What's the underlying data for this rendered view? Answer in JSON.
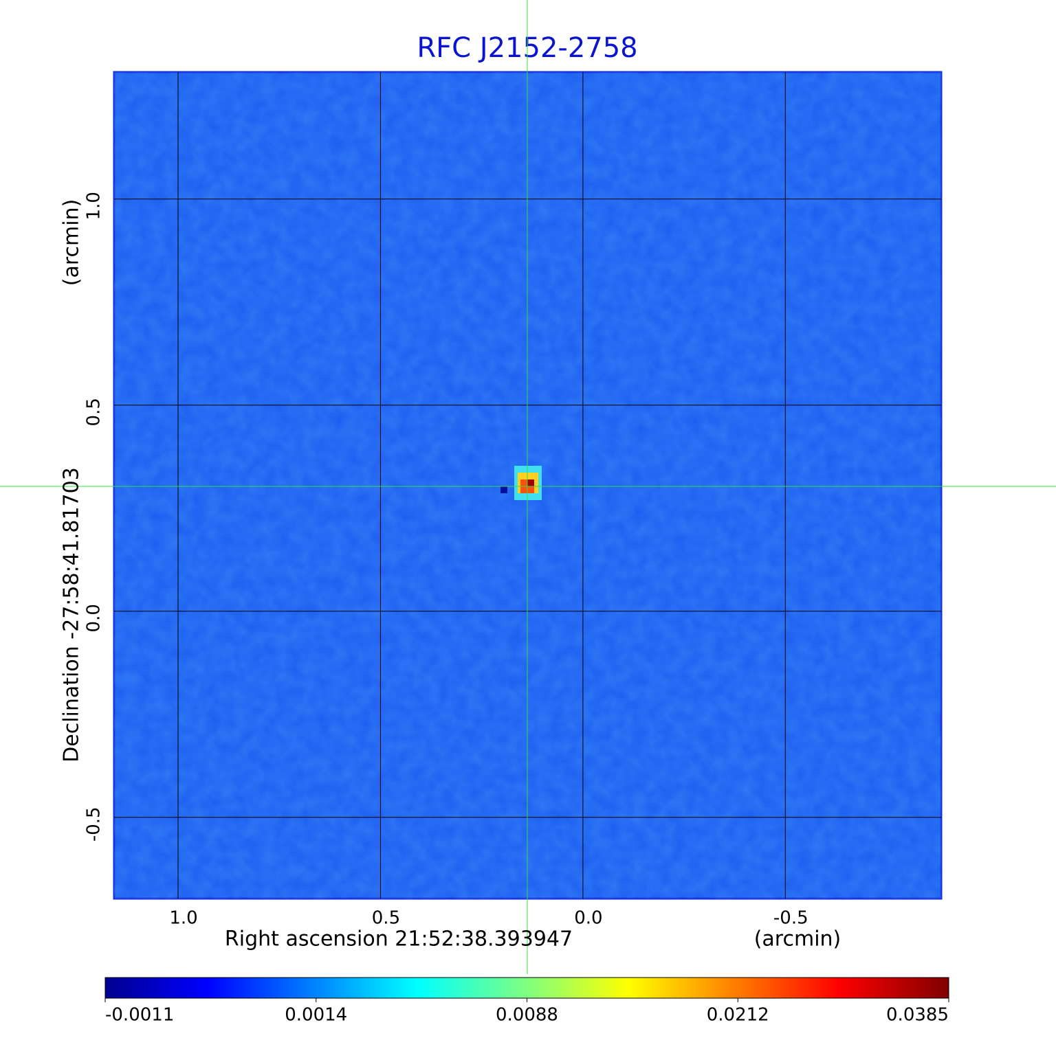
{
  "chart_data": {
    "type": "heatmap",
    "title": "RFC J2152-2758",
    "x_label": "Right ascension  21:52:38.393947",
    "x_unit": "(arcmin)",
    "y_label": "Declination  -27:58:41.81703",
    "y_unit": "(arcmin)",
    "xlim": [
      1.158,
      -0.885
    ],
    "xticks": [
      {
        "value": 1,
        "label": "1.0"
      },
      0.5,
      {
        "value": 0,
        "label": "0.0"
      },
      -0.5
    ],
    "ylim": [
      -0.697,
      1.308
    ],
    "yticks": [
      {
        "value": 1,
        "label": "1.0"
      },
      0.5,
      {
        "value": 0,
        "label": "0.0"
      },
      -0.5
    ],
    "colorbar_ticks": [
      -0.0011,
      0.0014,
      0.0088,
      0.0212,
      0.0385
    ],
    "grid": true
  }
}
